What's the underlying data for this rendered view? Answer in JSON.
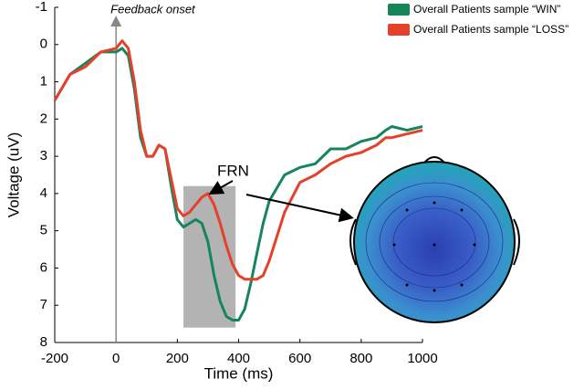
{
  "chart_data": {
    "type": "line",
    "x_label": "Time (ms)",
    "y_label": "Voltage (uV)",
    "annotation": "Feedback onset",
    "window": {
      "label": "FRN",
      "x": [
        220,
        390
      ],
      "y": [
        3.8,
        7.6
      ],
      "color": "#b3b3b3"
    },
    "xlim": [
      -200,
      1000
    ],
    "xticks": [
      -200,
      0,
      200,
      400,
      600,
      800,
      1000
    ],
    "ylim": [
      -1,
      8
    ],
    "yticks": [
      -1,
      0,
      1,
      2,
      3,
      4,
      5,
      6,
      7,
      8
    ],
    "y_inverted": true,
    "legend": "upper right",
    "x": [
      -200,
      -150,
      -100,
      -50,
      0,
      20,
      40,
      60,
      80,
      100,
      120,
      140,
      160,
      180,
      200,
      220,
      240,
      260,
      280,
      300,
      320,
      340,
      360,
      380,
      400,
      420,
      440,
      460,
      480,
      500,
      550,
      600,
      650,
      700,
      750,
      800,
      850,
      880,
      900,
      950,
      1000
    ],
    "series": [
      {
        "name": "Overall Patients sample “WIN”",
        "color": "#16855a",
        "values": [
          1.5,
          0.8,
          0.5,
          0.2,
          0.2,
          0.1,
          0.3,
          1.2,
          2.5,
          3.0,
          3.0,
          2.7,
          2.8,
          3.8,
          4.7,
          4.9,
          4.8,
          4.7,
          4.8,
          5.3,
          6.2,
          6.9,
          7.3,
          7.4,
          7.4,
          7.1,
          6.4,
          5.6,
          4.8,
          4.2,
          3.5,
          3.3,
          3.2,
          2.8,
          2.8,
          2.6,
          2.5,
          2.3,
          2.2,
          2.3,
          2.2
        ]
      },
      {
        "name": "Overall Patients sample “LOSS”",
        "color": "#e5412a",
        "values": [
          1.5,
          0.8,
          0.6,
          0.2,
          0.1,
          -0.1,
          0.1,
          1.0,
          2.3,
          3.0,
          3.0,
          2.7,
          2.8,
          3.6,
          4.4,
          4.6,
          4.5,
          4.3,
          4.1,
          4.0,
          4.3,
          4.8,
          5.4,
          5.9,
          6.2,
          6.3,
          6.3,
          6.3,
          6.2,
          5.8,
          4.5,
          3.7,
          3.5,
          3.2,
          3.0,
          2.9,
          2.7,
          2.5,
          2.5,
          2.4,
          2.3
        ]
      }
    ]
  }
}
